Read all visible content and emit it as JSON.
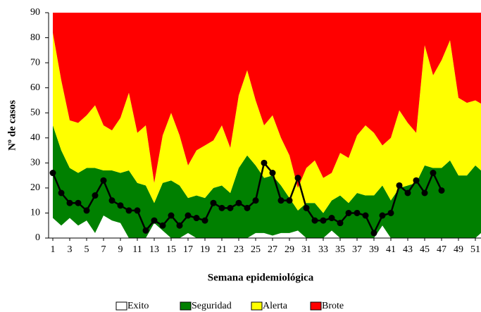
{
  "chart_data": {
    "type": "stacked-area",
    "y_label": "Nº de casos",
    "x_label": "Semana epidemiológica",
    "x": [
      1,
      2,
      3,
      4,
      5,
      6,
      7,
      8,
      9,
      10,
      11,
      12,
      13,
      14,
      15,
      16,
      17,
      18,
      19,
      20,
      21,
      22,
      23,
      24,
      25,
      26,
      27,
      28,
      29,
      30,
      31,
      32,
      33,
      34,
      35,
      36,
      37,
      38,
      39,
      40,
      41,
      42,
      43,
      44,
      45,
      46,
      47,
      48,
      49,
      50,
      51,
      52
    ],
    "xlim": [
      0.5,
      52
    ],
    "xticks": [
      1,
      3,
      5,
      7,
      9,
      11,
      13,
      15,
      17,
      19,
      21,
      23,
      25,
      27,
      29,
      31,
      33,
      35,
      37,
      39,
      41,
      43,
      45,
      47,
      49,
      51
    ],
    "ylim": [
      0,
      90
    ],
    "yticks": [
      0,
      10,
      20,
      30,
      40,
      50,
      60,
      70,
      80,
      90
    ],
    "series": [
      {
        "name": "Exito",
        "color": "#ffffff",
        "values": [
          8,
          5,
          8,
          5,
          7,
          2,
          9,
          7,
          6,
          0,
          0,
          0,
          6,
          3,
          0,
          0,
          2,
          0,
          0,
          0,
          0,
          0,
          0,
          0,
          2,
          2,
          1,
          2,
          2,
          3,
          0,
          0,
          0,
          3,
          0,
          0,
          0,
          0,
          0,
          5,
          0,
          0,
          0,
          0,
          0,
          0,
          0,
          0,
          0,
          0,
          0,
          3
        ]
      },
      {
        "name": "Seguridad",
        "color": "#008000",
        "values": [
          37,
          30,
          20,
          21,
          21,
          26,
          18,
          20,
          20,
          27,
          22,
          21,
          8,
          19,
          23,
          21,
          14,
          17,
          16,
          20,
          21,
          18,
          28,
          33,
          27,
          22,
          24,
          19,
          14,
          8,
          14,
          14,
          10,
          12,
          17,
          14,
          18,
          17,
          17,
          16,
          15,
          20,
          21,
          22,
          29,
          28,
          28,
          31,
          25,
          25,
          29,
          23
        ]
      },
      {
        "name": "Alerta",
        "color": "#ffff00",
        "values": [
          37,
          28,
          19,
          20,
          21,
          25,
          18,
          16,
          22,
          31,
          20,
          24,
          8,
          19,
          27,
          20,
          13,
          18,
          21,
          19,
          24,
          18,
          29,
          34,
          26,
          21,
          24,
          19,
          17,
          9,
          14,
          17,
          14,
          11,
          17,
          18,
          23,
          28,
          25,
          16,
          25,
          31,
          25,
          20,
          48,
          37,
          43,
          48,
          31,
          29,
          26,
          27
        ]
      },
      {
        "name": "Brote",
        "color": "#ff0000",
        "values": [
          8,
          27,
          43,
          44,
          41,
          37,
          45,
          47,
          42,
          32,
          48,
          45,
          68,
          49,
          40,
          49,
          61,
          55,
          53,
          51,
          45,
          54,
          33,
          23,
          35,
          45,
          41,
          50,
          57,
          70,
          62,
          59,
          66,
          64,
          56,
          58,
          49,
          45,
          48,
          53,
          50,
          39,
          44,
          48,
          13,
          25,
          19,
          11,
          34,
          36,
          35,
          37
        ]
      }
    ],
    "line": {
      "color": "#000000",
      "values": [
        26,
        18,
        14,
        14,
        11,
        17,
        23,
        15,
        13,
        11,
        11,
        3,
        7,
        5,
        9,
        5,
        9,
        8,
        7,
        14,
        12,
        12,
        14,
        12,
        15,
        30,
        26,
        15,
        15,
        24,
        12,
        7,
        7,
        8,
        6,
        10,
        10,
        9,
        2,
        9,
        10,
        21,
        18,
        23,
        18,
        26,
        19,
        null,
        null,
        null,
        null,
        null
      ]
    }
  }
}
